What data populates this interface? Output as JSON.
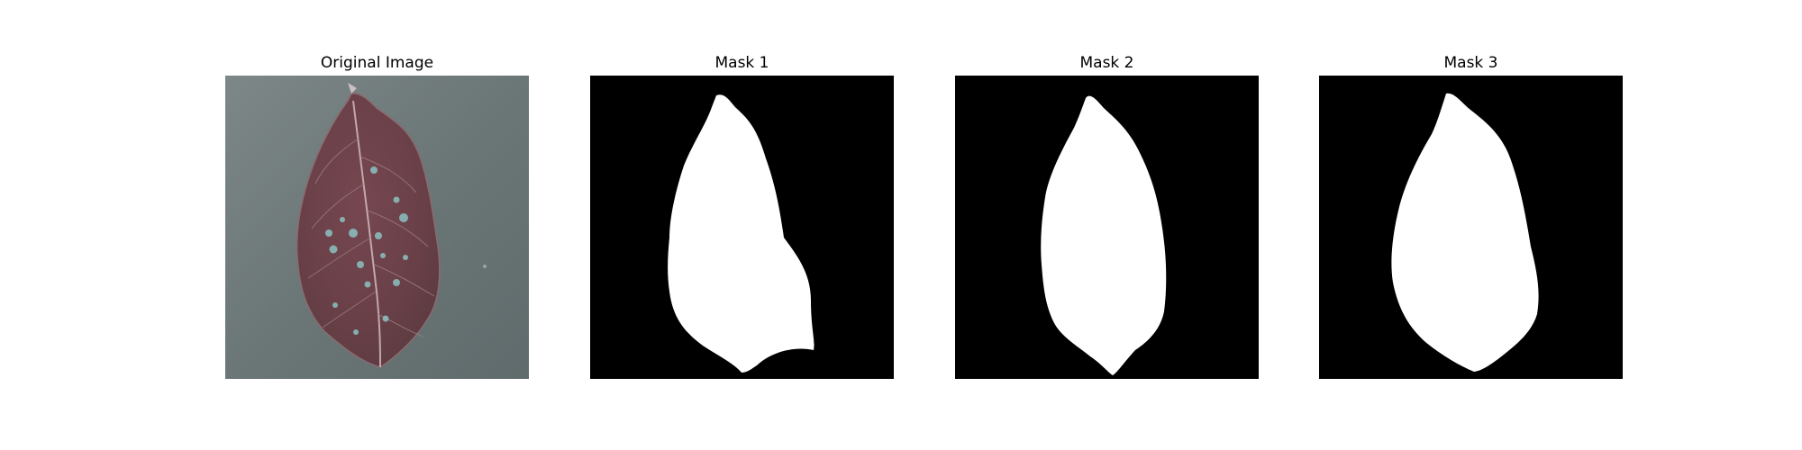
{
  "figure": {
    "panels": [
      {
        "title": "Original Image",
        "kind": "photo",
        "subject": "leaf-photo"
      },
      {
        "title": "Mask 1",
        "kind": "mask",
        "subject": "leaf-mask"
      },
      {
        "title": "Mask 2",
        "kind": "mask",
        "subject": "leaf-mask"
      },
      {
        "title": "Mask 3",
        "kind": "mask",
        "subject": "leaf-mask"
      }
    ],
    "colors": {
      "background": "#ffffff",
      "mask_background": "#000000",
      "mask_foreground": "#ffffff",
      "photo_background": "#6b7676",
      "leaf_color": "#6a4048",
      "spot_color": "#8fd3d2"
    }
  }
}
